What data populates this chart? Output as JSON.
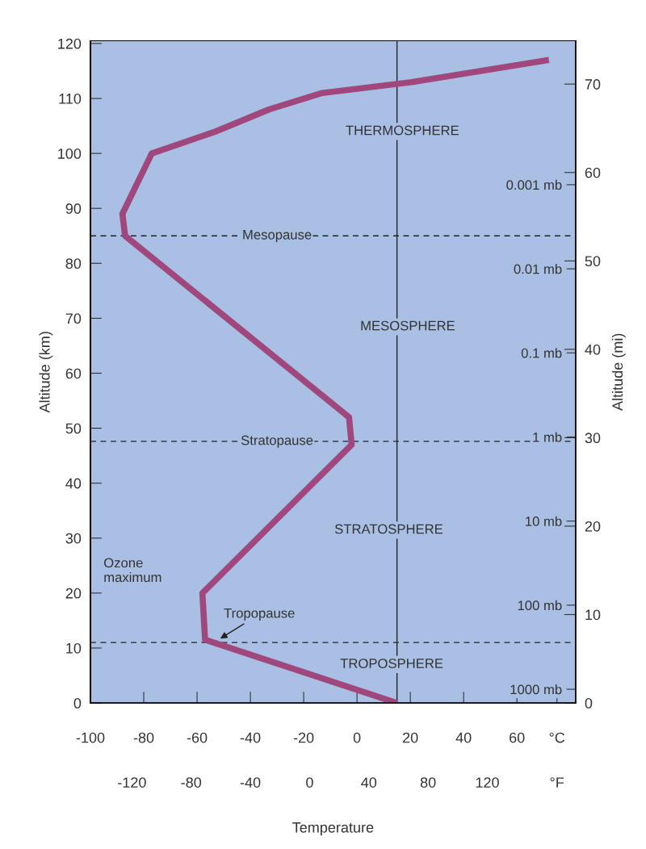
{
  "chart_data": {
    "type": "line",
    "xlabel": "Temperature",
    "ylabel": "Altitude (km)",
    "y2label": "Altitude (mi)",
    "series": [
      {
        "color": "#a0487e",
        "x": [
          15,
          -57,
          -58,
          -2,
          -3,
          -87,
          -88,
          -77,
          -53,
          -33,
          -13,
          21,
          72
        ],
        "values": [
          0,
          11.5,
          20,
          47,
          52,
          85,
          89,
          100,
          104,
          108,
          111,
          113,
          117
        ]
      }
    ],
    "xlim": [
      -100,
      82
    ],
    "xticks": [
      -100,
      -80,
      -60,
      -40,
      -20,
      0,
      20,
      40,
      60,
      {
        "value": 75,
        "label": "°C"
      }
    ],
    "x2lim": [
      -148,
      179.6
    ],
    "x2ticks": [
      -120,
      -80,
      -40,
      0,
      40,
      80,
      120,
      {
        "value": 167,
        "label": "°F"
      }
    ],
    "ylim": [
      0,
      120.5
    ],
    "yticks": [
      0,
      10,
      20,
      30,
      40,
      50,
      60,
      70,
      80,
      90,
      100,
      110,
      120
    ],
    "y2lim": [
      0,
      74.9
    ],
    "y2ticks": [
      0,
      10,
      20,
      30,
      40,
      50,
      60,
      70
    ],
    "ref_lines": [
      {
        "axis": "y",
        "value": 85,
        "label": "Mesopause",
        "line_style": "dashed",
        "color": "#222222"
      },
      {
        "axis": "y",
        "value": 47.6,
        "label": "Stratopause",
        "line_style": "dashed",
        "color": "#222222"
      },
      {
        "axis": "y",
        "value": 11,
        "label": null,
        "line_style": "dashed",
        "color": "#222222"
      },
      {
        "axis": "x",
        "value": 15,
        "label": null,
        "line_style": "solid",
        "color": "#222222"
      }
    ],
    "annotations": [
      {
        "text": "Tropopause",
        "x": -52,
        "y": 11.5
      },
      "Ozone\nmaximum",
      "THERMOSPHERE",
      "MESOSPHERE",
      "STRATOSPHERE",
      "TROPOSPHERE"
    ],
    "log": "y3",
    "y3lim": [
      1456,
      1.94e-05
    ],
    "y3ticks": [
      {
        "value": 0.001,
        "label": "0.001 mb"
      },
      {
        "value": 0.01,
        "label": "0.01 mb"
      },
      {
        "value": 0.1,
        "label": "0.1 mb"
      },
      {
        "value": 1,
        "label": "1 mb"
      },
      {
        "value": 10,
        "label": "10 mb"
      },
      {
        "value": 100,
        "label": "100 mb"
      },
      {
        "value": 1000,
        "label": "1000 mb"
      }
    ],
    "grid": false,
    "legend": false,
    "marker": "none",
    "line_style": "solid"
  }
}
